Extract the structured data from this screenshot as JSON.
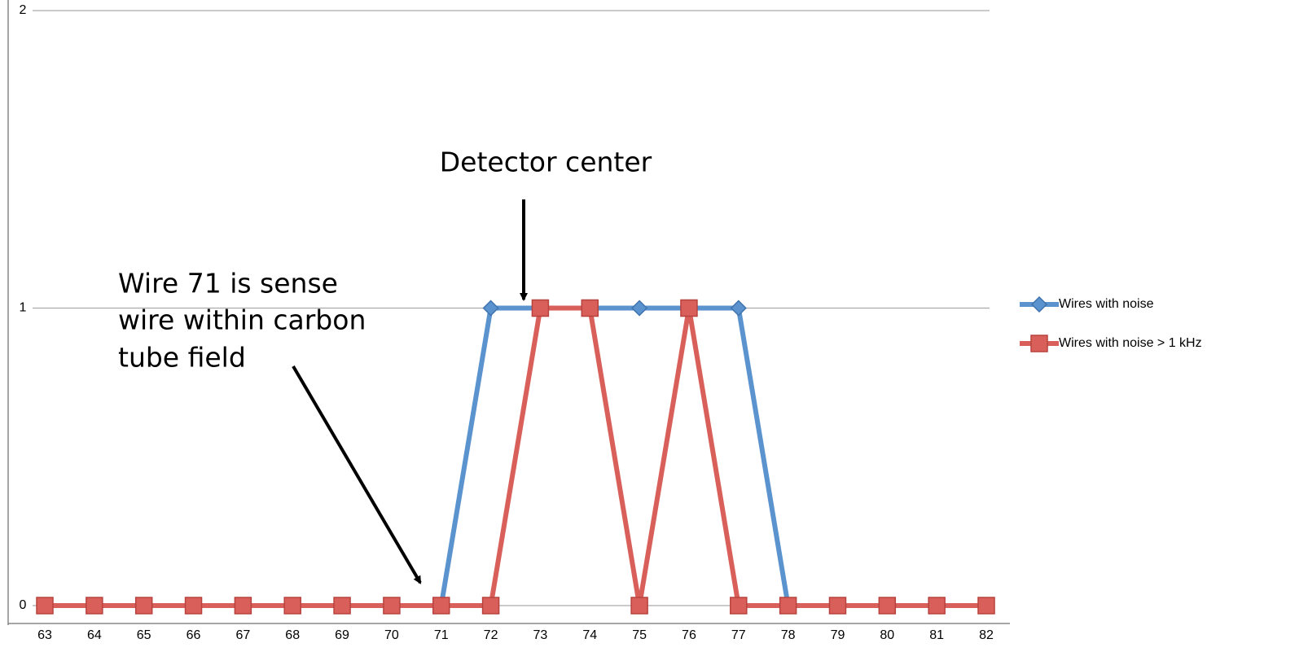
{
  "chart_data": {
    "type": "line",
    "categories": [
      63,
      64,
      65,
      66,
      67,
      68,
      69,
      70,
      71,
      72,
      73,
      74,
      75,
      76,
      77,
      78,
      79,
      80,
      81,
      82
    ],
    "series": [
      {
        "name": "Wires with noise",
        "color": "#5b93cf",
        "marker": "diamond",
        "values": [
          0,
          0,
          0,
          0,
          0,
          0,
          0,
          0,
          0,
          1,
          1,
          1,
          1,
          1,
          1,
          0,
          0,
          0,
          0,
          0
        ]
      },
      {
        "name": "Wires with noise > 1 kHz",
        "color": "#d9605a",
        "marker": "square",
        "values": [
          0,
          0,
          0,
          0,
          0,
          0,
          0,
          0,
          0,
          0,
          1,
          1,
          0,
          1,
          0,
          0,
          0,
          0,
          0,
          0
        ]
      }
    ],
    "ylim": [
      0,
      2
    ],
    "yticks": [
      0,
      1,
      2
    ],
    "grid": true,
    "legend": "right",
    "annotations": [
      {
        "text": [
          "Detector center"
        ]
      },
      {
        "text": [
          "Wire 71 is sense",
          "wire within carbon",
          "tube field"
        ]
      }
    ]
  }
}
